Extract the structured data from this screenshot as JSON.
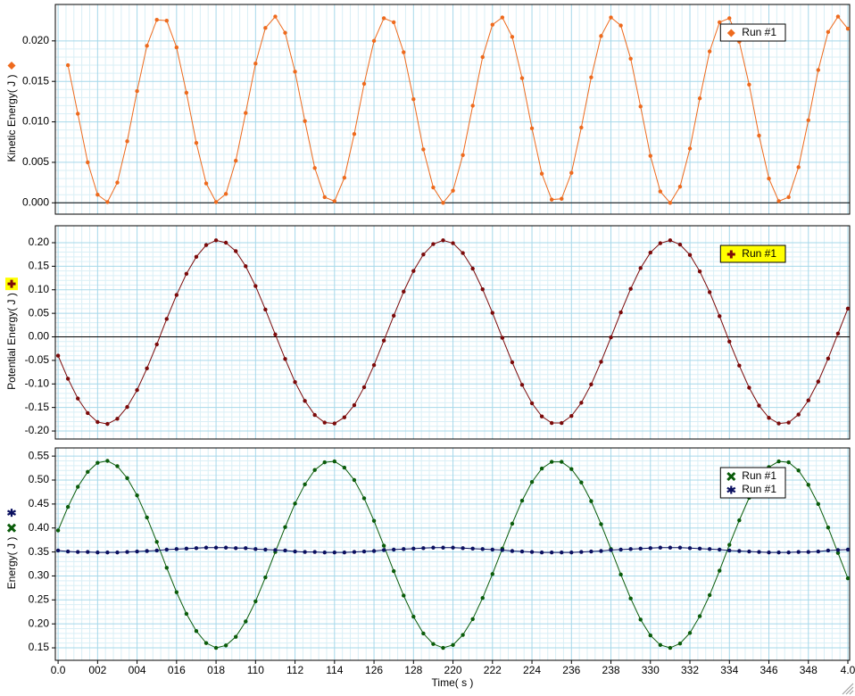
{
  "chart_data": [
    {
      "type": "line",
      "ylabel": "Kinetic Energy( J )",
      "x": [
        0,
        0.05,
        0.1,
        0.15,
        0.2,
        0.25,
        0.3,
        0.35,
        0.4,
        0.45,
        0.5,
        0.55,
        0.6,
        0.65,
        0.7,
        0.75,
        0.8,
        0.85,
        0.9,
        0.95,
        1,
        1.05,
        1.1,
        1.15,
        1.2,
        1.25,
        1.3,
        1.35,
        1.4,
        1.45,
        1.5,
        1.55,
        1.6,
        1.65,
        1.7,
        1.75,
        1.8,
        1.85,
        1.9,
        1.95,
        2,
        2.05,
        2.1,
        2.15,
        2.2,
        2.25,
        2.3,
        2.35,
        2.4,
        2.45,
        2.5,
        2.55,
        2.6,
        2.65,
        2.7,
        2.75,
        2.8,
        2.85,
        2.9,
        2.95,
        3,
        3.05,
        3.1,
        3.15,
        3.2,
        3.25,
        3.3,
        3.35,
        3.4,
        3.45,
        3.5,
        3.55,
        3.6,
        3.65,
        3.7,
        3.75,
        3.8,
        3.85,
        3.9,
        3.95,
        4
      ],
      "series": [
        {
          "name": "Run #1",
          "color": "#ee6a1d",
          "marker": "diamond",
          "values": [
            null,
            0.017,
            0.011,
            0.005,
            0.001,
            0.0001,
            0.0025,
            0.0076,
            0.0138,
            0.0194,
            0.0226,
            0.0225,
            0.0192,
            0.0136,
            0.0074,
            0.0024,
            0.0001,
            0.0011,
            0.0052,
            0.0111,
            0.0172,
            0.0216,
            0.023,
            0.021,
            0.0162,
            0.0101,
            0.0043,
            0.0007,
            0.0002,
            0.0031,
            0.0085,
            0.0147,
            0.02,
            0.0228,
            0.0223,
            0.0186,
            0.0128,
            0.0066,
            0.0019,
            0,
            0.0015,
            0.0059,
            0.012,
            0.018,
            0.022,
            0.0229,
            0.0205,
            0.0154,
            0.0092,
            0.0036,
            0.0004,
            0.0005,
            0.0037,
            0.0093,
            0.0155,
            0.0206,
            0.0229,
            0.0219,
            0.0178,
            0.0119,
            0.0058,
            0.0014,
            0,
            0.002,
            0.0067,
            0.0129,
            0.0187,
            0.0223,
            0.0228,
            0.0199,
            0.0146,
            0.0083,
            0.003,
            0.0002,
            0.0007,
            0.0044,
            0.0102,
            0.0164,
            0.0211,
            0.023,
            0.0215
          ]
        }
      ],
      "xlim": [
        -0.014,
        4.009
      ],
      "xticks": [
        0,
        0.2,
        0.4,
        0.6,
        0.8,
        1,
        1.2,
        1.4,
        1.6,
        1.8,
        2,
        2.2,
        2.4,
        2.6,
        2.8,
        3,
        3.2,
        3.4,
        3.6,
        3.8,
        4
      ],
      "ylim": [
        -0.0014,
        0.0245
      ],
      "yticks": [
        {
          "value": 0,
          "label": "0.000"
        },
        0.005,
        {
          "value": 0.01,
          "label": "0.010"
        },
        0.015,
        {
          "value": 0.02,
          "label": "0.020"
        }
      ],
      "grid": true,
      "legend": "upper right"
    },
    {
      "type": "line",
      "ylabel": "Potential Energy( J )",
      "x": [
        0,
        0.05,
        0.1,
        0.15,
        0.2,
        0.25,
        0.3,
        0.35,
        0.4,
        0.45,
        0.5,
        0.55,
        0.6,
        0.65,
        0.7,
        0.75,
        0.8,
        0.85,
        0.9,
        0.95,
        1,
        1.05,
        1.1,
        1.15,
        1.2,
        1.25,
        1.3,
        1.35,
        1.4,
        1.45,
        1.5,
        1.55,
        1.6,
        1.65,
        1.7,
        1.75,
        1.8,
        1.85,
        1.9,
        1.95,
        2,
        2.05,
        2.1,
        2.15,
        2.2,
        2.25,
        2.3,
        2.35,
        2.4,
        2.45,
        2.5,
        2.55,
        2.6,
        2.65,
        2.7,
        2.75,
        2.8,
        2.85,
        2.9,
        2.95,
        3,
        3.05,
        3.1,
        3.15,
        3.2,
        3.25,
        3.3,
        3.35,
        3.4,
        3.45,
        3.5,
        3.55,
        3.6,
        3.65,
        3.7,
        3.75,
        3.8,
        3.85,
        3.9,
        3.95,
        4
      ],
      "series": [
        {
          "name": "Run #1",
          "color": "#7b0a0a",
          "marker": "plus",
          "values": [
            -0.04,
            -0.089,
            -0.131,
            -0.162,
            -0.181,
            -0.185,
            -0.174,
            -0.149,
            -0.113,
            -0.067,
            -0.016,
            0.038,
            0.089,
            0.134,
            0.17,
            0.195,
            0.205,
            0.2,
            0.182,
            0.15,
            0.108,
            0.058,
            0.005,
            -0.047,
            -0.096,
            -0.136,
            -0.166,
            -0.182,
            -0.184,
            -0.171,
            -0.145,
            -0.107,
            -0.06,
            -0.008,
            0.045,
            0.096,
            0.14,
            0.175,
            0.197,
            0.205,
            0.199,
            0.178,
            0.145,
            0.101,
            0.051,
            -0.002,
            -0.054,
            -0.102,
            -0.141,
            -0.169,
            -0.183,
            -0.183,
            -0.168,
            -0.14,
            -0.101,
            -0.053,
            -0.001,
            0.052,
            0.102,
            0.146,
            0.179,
            0.199,
            0.205,
            0.196,
            0.174,
            0.139,
            0.095,
            0.044,
            -0.01,
            -0.061,
            -0.108,
            -0.146,
            -0.172,
            -0.184,
            -0.182,
            -0.165,
            -0.135,
            -0.095,
            -0.046,
            0.007,
            0.06
          ]
        }
      ],
      "xlim": [
        -0.014,
        4.009
      ],
      "xticks": [
        0,
        0.2,
        0.4,
        0.6,
        0.8,
        1,
        1.2,
        1.4,
        1.6,
        1.8,
        2,
        2.2,
        2.4,
        2.6,
        2.8,
        3,
        3.2,
        3.4,
        3.6,
        3.8,
        4
      ],
      "ylim": [
        -0.217,
        0.236
      ],
      "yticks": [
        {
          "value": -0.2,
          "label": "-0.20"
        },
        -0.15,
        {
          "value": -0.1,
          "label": "-0.10"
        },
        -0.05,
        {
          "value": 0,
          "label": "0.00"
        },
        0.05,
        {
          "value": 0.1,
          "label": "0.10"
        },
        0.15,
        {
          "value": 0.2,
          "label": "0.20"
        }
      ],
      "grid": true,
      "legend": "upper right",
      "legend_background": "#ffff00"
    },
    {
      "type": "line",
      "ylabel": "Energy( J )",
      "xlabel": "Time( s )",
      "x": [
        0,
        0.05,
        0.1,
        0.15,
        0.2,
        0.25,
        0.3,
        0.35,
        0.4,
        0.45,
        0.5,
        0.55,
        0.6,
        0.65,
        0.7,
        0.75,
        0.8,
        0.85,
        0.9,
        0.95,
        1,
        1.05,
        1.1,
        1.15,
        1.2,
        1.25,
        1.3,
        1.35,
        1.4,
        1.45,
        1.5,
        1.55,
        1.6,
        1.65,
        1.7,
        1.75,
        1.8,
        1.85,
        1.9,
        1.95,
        2,
        2.05,
        2.1,
        2.15,
        2.2,
        2.25,
        2.3,
        2.35,
        2.4,
        2.45,
        2.5,
        2.55,
        2.6,
        2.65,
        2.7,
        2.75,
        2.8,
        2.85,
        2.9,
        2.95,
        3,
        3.05,
        3.1,
        3.15,
        3.2,
        3.25,
        3.3,
        3.35,
        3.4,
        3.45,
        3.5,
        3.55,
        3.6,
        3.65,
        3.7,
        3.75,
        3.8,
        3.85,
        3.9,
        3.95,
        4
      ],
      "series": [
        {
          "name": "Run #1",
          "color": "#0a5c0a",
          "marker": "cross",
          "values": [
            0.395,
            0.444,
            0.486,
            0.517,
            0.536,
            0.54,
            0.529,
            0.504,
            0.468,
            0.422,
            0.371,
            0.317,
            0.266,
            0.221,
            0.185,
            0.16,
            0.15,
            0.155,
            0.173,
            0.205,
            0.247,
            0.297,
            0.35,
            0.402,
            0.451,
            0.491,
            0.521,
            0.537,
            0.539,
            0.526,
            0.5,
            0.462,
            0.415,
            0.363,
            0.31,
            0.259,
            0.215,
            0.18,
            0.158,
            0.15,
            0.156,
            0.177,
            0.21,
            0.254,
            0.304,
            0.357,
            0.409,
            0.457,
            0.496,
            0.524,
            0.538,
            0.538,
            0.523,
            0.495,
            0.456,
            0.408,
            0.356,
            0.303,
            0.253,
            0.209,
            0.176,
            0.156,
            0.15,
            0.159,
            0.181,
            0.216,
            0.26,
            0.311,
            0.365,
            0.416,
            0.463,
            0.501,
            0.527,
            0.539,
            0.537,
            0.52,
            0.49,
            0.45,
            0.401,
            0.348,
            0.295
          ]
        },
        {
          "name": "Run #1",
          "color": "#0b1060",
          "marker": "asterisk",
          "values": [
            0.353,
            0.351,
            0.35,
            0.35,
            0.349,
            0.349,
            0.349,
            0.35,
            0.351,
            0.352,
            0.353,
            0.355,
            0.356,
            0.357,
            0.358,
            0.359,
            0.359,
            0.359,
            0.358,
            0.358,
            0.356,
            0.355,
            0.354,
            0.353,
            0.351,
            0.35,
            0.35,
            0.349,
            0.349,
            0.349,
            0.35,
            0.351,
            0.352,
            0.354,
            0.355,
            0.356,
            0.357,
            0.358,
            0.359,
            0.359,
            0.359,
            0.358,
            0.357,
            0.356,
            0.355,
            0.354,
            0.352,
            0.351,
            0.35,
            0.349,
            0.349,
            0.349,
            0.349,
            0.35,
            0.351,
            0.352,
            0.354,
            0.355,
            0.356,
            0.357,
            0.358,
            0.359,
            0.359,
            0.359,
            0.358,
            0.357,
            0.356,
            0.355,
            0.353,
            0.352,
            0.351,
            0.35,
            0.349,
            0.349,
            0.349,
            0.35,
            0.35,
            0.351,
            0.353,
            0.354,
            0.355
          ]
        }
      ],
      "xlim": [
        -0.014,
        4.009
      ],
      "xticks": [
        {
          "value": 0,
          "label": "0.0"
        },
        {
          "value": 0.2,
          "label": "002"
        },
        {
          "value": 0.4,
          "label": "004"
        },
        {
          "value": 0.6,
          "label": "016"
        },
        {
          "value": 0.8,
          "label": "018"
        },
        {
          "value": 1,
          "label": "110"
        },
        {
          "value": 1.2,
          "label": "112"
        },
        {
          "value": 1.4,
          "label": "114"
        },
        {
          "value": 1.6,
          "label": "126"
        },
        {
          "value": 1.8,
          "label": "128"
        },
        {
          "value": 2,
          "label": "220"
        },
        {
          "value": 2.2,
          "label": "222"
        },
        {
          "value": 2.4,
          "label": "224"
        },
        {
          "value": 2.6,
          "label": "236"
        },
        {
          "value": 2.8,
          "label": "238"
        },
        {
          "value": 3,
          "label": "330"
        },
        {
          "value": 3.2,
          "label": "332"
        },
        {
          "value": 3.4,
          "label": "334"
        },
        {
          "value": 3.6,
          "label": "346"
        },
        {
          "value": 3.8,
          "label": "348"
        },
        {
          "value": 4,
          "label": "4.0"
        }
      ],
      "ylim": [
        0.124,
        0.567
      ],
      "yticks": [
        0.15,
        {
          "value": 0.2,
          "label": "0.20"
        },
        0.25,
        {
          "value": 0.3,
          "label": "0.30"
        },
        0.35,
        {
          "value": 0.4,
          "label": "0.40"
        },
        0.45,
        {
          "value": 0.5,
          "label": "0.50"
        },
        0.55
      ],
      "grid": true,
      "legend": "upper right"
    }
  ]
}
